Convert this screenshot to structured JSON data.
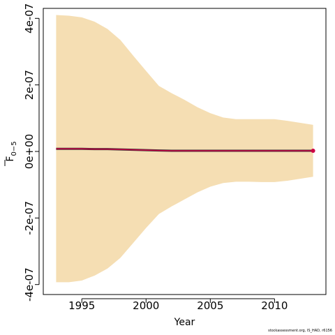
{
  "chart_data": {
    "type": "area",
    "xlabel": "Year",
    "ylabel_main": "F",
    "ylabel_sub": "0−5",
    "xlim": [
      1992,
      2014
    ],
    "ylim": [
      -4.3e-07,
      4.3e-07
    ],
    "x_ticks": [
      {
        "value": 1995,
        "label": "1995"
      },
      {
        "value": 2000,
        "label": "2000"
      },
      {
        "value": 2005,
        "label": "2005"
      },
      {
        "value": 2010,
        "label": "2010"
      }
    ],
    "y_ticks": [
      {
        "value": -4e-07,
        "label": "-4e-07"
      },
      {
        "value": -2e-07,
        "label": "-2e-07"
      },
      {
        "value": 0,
        "label": "0e+00"
      },
      {
        "value": 2e-07,
        "label": "2e-07"
      },
      {
        "value": 4e-07,
        "label": "4e-07"
      }
    ],
    "years": [
      1993,
      1994,
      1995,
      1996,
      1997,
      1998,
      1999,
      2000,
      2001,
      2002,
      2003,
      2004,
      2005,
      2006,
      2007,
      2008,
      2009,
      2010,
      2011,
      2012,
      2013
    ],
    "series": [
      {
        "role": "estimate",
        "values": [
          8e-09,
          8e-09,
          8e-09,
          7e-09,
          7e-09,
          6e-09,
          5e-09,
          4e-09,
          3e-09,
          2e-09,
          2e-09,
          2e-09,
          2e-09,
          2e-09,
          2e-09,
          2e-09,
          2e-09,
          2e-09,
          2e-09,
          2e-09,
          2e-09
        ]
      },
      {
        "role": "upper",
        "values": [
          4.1e-07,
          4.08e-07,
          4.03e-07,
          3.9e-07,
          3.68e-07,
          3.35e-07,
          2.88e-07,
          2.42e-07,
          1.97e-07,
          1.75e-07,
          1.55e-07,
          1.33e-07,
          1.15e-07,
          1.02e-07,
          9.7e-08,
          9.7e-08,
          9.7e-08,
          9.7e-08,
          9.2e-08,
          8.6e-08,
          8e-08
        ]
      },
      {
        "role": "lower",
        "values": [
          -3.93e-07,
          -3.93e-07,
          -3.88e-07,
          -3.73e-07,
          -3.52e-07,
          -3.2e-07,
          -2.75e-07,
          -2.3e-07,
          -1.88e-07,
          -1.65e-07,
          -1.44e-07,
          -1.23e-07,
          -1.06e-07,
          -9.5e-08,
          -9.1e-08,
          -9.1e-08,
          -9.2e-08,
          -9.2e-08,
          -8.8e-08,
          -8.2e-08,
          -7.6e-08
        ]
      }
    ],
    "colors": {
      "band": "#f5deb3",
      "line": "#cc0044",
      "line_shadow": "#333333",
      "axis": "#000000"
    }
  },
  "footnote": "stockassessment.org, IS_HAD, r6156"
}
